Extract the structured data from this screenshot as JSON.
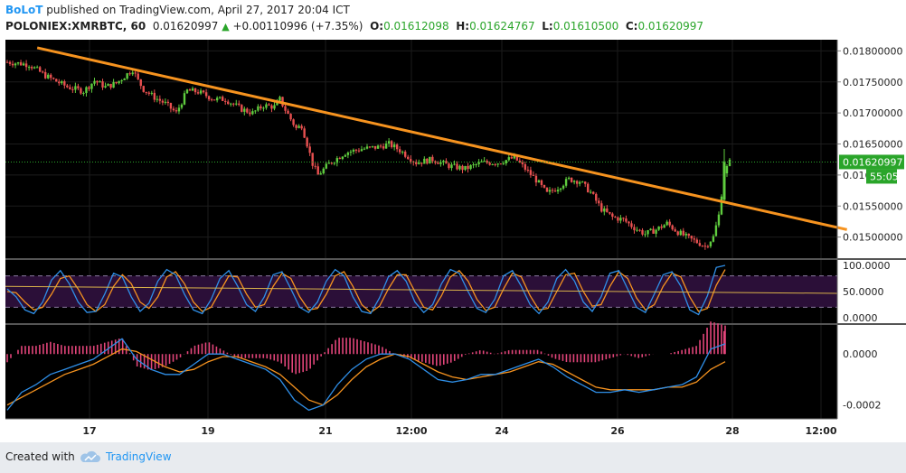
{
  "header": {
    "user": "BoLoT",
    "published_text": " published on TradingView.com, April 27, 2017 20:04 ICT",
    "symbol": "POLONIEX:XMRBTC, 60",
    "last": "0.01620997",
    "change": "+0.00110996 (+7.35%)",
    "o_label": "O:",
    "o_value": "0.01612098",
    "h_label": "H:",
    "h_value": "0.01624767",
    "l_label": "L:",
    "l_value": "0.01610500",
    "c_label": "C:",
    "c_value": "0.01620997"
  },
  "footer": {
    "created_with": "Created with",
    "brand": "TradingView"
  },
  "colors": {
    "background": "#000000",
    "grid": "#1c1c1c",
    "up_candle": "#5fcc3e",
    "down_candle": "#e85050",
    "trendline": "#f6931f",
    "stoch_k": "#2f8fe8",
    "stoch_d": "#f6931f",
    "stoch_band": "#2b0f38",
    "macd_line": "#2f8fe8",
    "signal_line": "#f6931f",
    "histogram": "#e2457a",
    "price_badge": "#2aa52a"
  },
  "chart_data": [
    {
      "type": "candlestick",
      "title": "",
      "x_tick_labels": [
        "17",
        "19",
        "21",
        "12:00",
        "24",
        "26",
        "28",
        "12:00"
      ],
      "y_tick_labels": [
        "0.01800000",
        "0.01750000",
        "0.01700000",
        "0.01650000",
        "0.016",
        "0.01550000",
        "0.01500000"
      ],
      "ylim": [
        0.01466,
        0.01818
      ],
      "price_badge": "0.01620997",
      "countdown_badge": "55:05",
      "last_price": 0.01620997,
      "close_path": [
        [
          0,
          0.01782
        ],
        [
          8,
          0.01778
        ],
        [
          14,
          0.0176
        ],
        [
          22,
          0.01742
        ],
        [
          28,
          0.01735
        ],
        [
          32,
          0.01752
        ],
        [
          36,
          0.01742
        ],
        [
          40,
          0.01748
        ],
        [
          46,
          0.0177
        ],
        [
          48,
          0.01752
        ],
        [
          50,
          0.01738
        ],
        [
          54,
          0.01725
        ],
        [
          58,
          0.01715
        ],
        [
          62,
          0.017
        ],
        [
          64,
          0.01718
        ],
        [
          66,
          0.01736
        ],
        [
          70,
          0.01734
        ],
        [
          76,
          0.01722
        ],
        [
          80,
          0.01722
        ],
        [
          86,
          0.01706
        ],
        [
          90,
          0.017
        ],
        [
          94,
          0.01712
        ],
        [
          98,
          0.0171
        ],
        [
          100,
          0.01722
        ],
        [
          102,
          0.01705
        ],
        [
          106,
          0.01675
        ],
        [
          108,
          0.0168
        ],
        [
          110,
          0.0165
        ],
        [
          112,
          0.01618
        ],
        [
          114,
          0.016
        ],
        [
          118,
          0.01618
        ],
        [
          124,
          0.01636
        ],
        [
          130,
          0.01642
        ],
        [
          136,
          0.01645
        ],
        [
          140,
          0.0165
        ],
        [
          144,
          0.0164
        ],
        [
          150,
          0.0162
        ],
        [
          156,
          0.01625
        ],
        [
          162,
          0.01615
        ],
        [
          168,
          0.0161
        ],
        [
          174,
          0.0162
        ],
        [
          180,
          0.0162
        ],
        [
          186,
          0.01628
        ],
        [
          190,
          0.0161
        ],
        [
          194,
          0.01592
        ],
        [
          198,
          0.0157
        ],
        [
          202,
          0.0158
        ],
        [
          206,
          0.01593
        ],
        [
          210,
          0.0159
        ],
        [
          214,
          0.01572
        ],
        [
          218,
          0.01545
        ],
        [
          222,
          0.01532
        ],
        [
          226,
          0.01528
        ],
        [
          230,
          0.01515
        ],
        [
          234,
          0.01505
        ],
        [
          238,
          0.01512
        ],
        [
          242,
          0.01522
        ],
        [
          246,
          0.01508
        ],
        [
          250,
          0.01498
        ],
        [
          254,
          0.0149
        ],
        [
          256,
          0.01485
        ],
        [
          259,
          0.015
        ],
        [
          261,
          0.01535
        ],
        [
          263,
          0.01605
        ],
        [
          264,
          0.01612
        ],
        [
          265,
          0.01621
        ]
      ],
      "trendline": {
        "start": [
          11,
          0.01805
        ],
        "end": [
          308,
          0.01512
        ]
      }
    },
    {
      "type": "line",
      "title": "",
      "y_tick_labels": [
        "100.0000",
        "50.0000",
        "0.0000"
      ],
      "ylim": [
        0,
        100
      ],
      "bands": [
        20,
        80
      ],
      "series": [
        {
          "values": [
            55,
            40,
            15,
            8,
            30,
            72,
            90,
            65,
            30,
            10,
            12,
            45,
            85,
            78,
            40,
            12,
            28,
            70,
            92,
            82,
            45,
            15,
            8,
            35,
            75,
            90,
            60,
            25,
            12,
            40,
            82,
            88,
            55,
            20,
            10,
            30,
            70,
            92,
            80,
            40,
            12,
            8,
            38,
            78,
            90,
            70,
            30,
            10,
            25,
            65,
            92,
            85,
            50,
            18,
            10,
            35,
            80,
            90,
            60,
            25,
            8,
            30,
            75,
            92,
            70,
            30,
            12,
            40,
            85,
            90,
            55,
            20,
            10,
            45,
            82,
            88,
            60,
            15,
            6,
            42,
            96,
            100
          ]
        },
        {
          "values": [
            50,
            48,
            30,
            15,
            20,
            45,
            75,
            80,
            55,
            25,
            12,
            25,
            60,
            82,
            65,
            30,
            18,
            40,
            78,
            88,
            65,
            30,
            12,
            20,
            50,
            80,
            78,
            45,
            20,
            25,
            60,
            85,
            75,
            40,
            15,
            18,
            45,
            80,
            88,
            60,
            25,
            10,
            22,
            55,
            82,
            82,
            50,
            20,
            15,
            42,
            78,
            90,
            70,
            35,
            14,
            20,
            55,
            85,
            78,
            42,
            15,
            18,
            50,
            82,
            85,
            50,
            22,
            25,
            60,
            88,
            75,
            38,
            15,
            25,
            60,
            85,
            78,
            40,
            12,
            18,
            62,
            92
          ]
        },
        {
          "values": [
            60,
            46.6
          ]
        }
      ]
    },
    {
      "type": "line",
      "title": "",
      "y_tick_labels": [
        "0.0000",
        "-0.0002"
      ],
      "ylim": [
        -0.00024,
        0.0001
      ],
      "series": [
        {
          "values": [
            -0.00022,
            -0.00015,
            -0.00012,
            -8e-05,
            -6e-05,
            -4e-05,
            -2e-05,
            2e-05,
            6e-05,
            -2e-05,
            -6e-05,
            -8e-05,
            -8e-05,
            -4e-05,
            0.0,
            0.0,
            -2e-05,
            -4e-05,
            -6e-05,
            -0.0001,
            -0.00018,
            -0.00022,
            -0.0002,
            -0.00012,
            -6e-05,
            -2e-05,
            0.0,
            0.0,
            -2e-05,
            -6e-05,
            -0.0001,
            -0.00011,
            -0.0001,
            -8e-05,
            -8e-05,
            -6e-05,
            -4e-05,
            -2e-05,
            -5e-05,
            -9e-05,
            -0.00012,
            -0.00015,
            -0.00015,
            -0.00014,
            -0.00015,
            -0.00014,
            -0.00013,
            -0.00012,
            -9e-05,
            2e-05,
            4e-05
          ]
        },
        {
          "values": [
            -0.0002,
            -0.00017,
            -0.00014,
            -0.00011,
            -8e-05,
            -6e-05,
            -4e-05,
            -1e-05,
            2e-05,
            1e-05,
            -2e-05,
            -5e-05,
            -7e-05,
            -6e-05,
            -3e-05,
            -1e-05,
            -1e-05,
            -3e-05,
            -5e-05,
            -8e-05,
            -0.00013,
            -0.00018,
            -0.0002,
            -0.00016,
            -0.0001,
            -5e-05,
            -2e-05,
            0.0,
            -1e-05,
            -4e-05,
            -7e-05,
            -9e-05,
            -0.0001,
            -9e-05,
            -8e-05,
            -7e-05,
            -5e-05,
            -3e-05,
            -4e-05,
            -7e-05,
            -0.0001,
            -0.00013,
            -0.00014,
            -0.00014,
            -0.00014,
            -0.00014,
            -0.00013,
            -0.00013,
            -0.00011,
            -6e-05,
            -3e-05
          ]
        }
      ]
    }
  ]
}
